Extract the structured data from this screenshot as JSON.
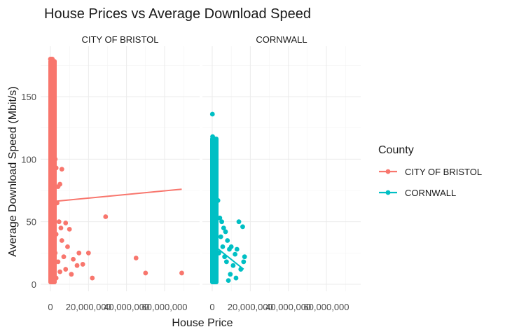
{
  "chart_data": {
    "type": "scatter",
    "title": "House Prices vs Average Download Speed",
    "xlabel": "House Price",
    "ylabel": "Average Download Speed (Mbit/s)",
    "xlim": [
      0,
      70000000
    ],
    "ylim": [
      0,
      180
    ],
    "x_ticks": [
      0,
      20000000,
      40000000,
      60000000
    ],
    "x_tick_labels": [
      "0",
      "20,000,000",
      "40,000,000",
      "60,000,000"
    ],
    "y_ticks": [
      0,
      50,
      100,
      150
    ],
    "y_tick_labels": [
      "0",
      "50",
      "100",
      "150"
    ],
    "grid": true,
    "legend": {
      "title": "County",
      "position": "right"
    },
    "facets": [
      "CITY OF BRISTOL",
      "CORNWALL"
    ],
    "series": [
      {
        "name": "CITY OF BRISTOL",
        "color": "#F8766D",
        "points": [
          [
            0,
            180
          ],
          [
            500000,
            180
          ],
          [
            1000000,
            180
          ],
          [
            300000,
            170
          ],
          [
            200000,
            155
          ],
          [
            400000,
            150
          ],
          [
            800000,
            153
          ],
          [
            100000,
            140
          ],
          [
            600000,
            135
          ],
          [
            900000,
            130
          ],
          [
            300000,
            125
          ],
          [
            700000,
            120
          ],
          [
            1100000,
            118
          ],
          [
            500000,
            110
          ],
          [
            200000,
            105
          ],
          [
            800000,
            100
          ],
          [
            400000,
            95
          ],
          [
            1000000,
            90
          ],
          [
            600000,
            85
          ],
          [
            300000,
            80
          ],
          [
            900000,
            75
          ],
          [
            150000,
            70
          ],
          [
            700000,
            65
          ],
          [
            1200000,
            62
          ],
          [
            400000,
            58
          ],
          [
            800000,
            52
          ],
          [
            200000,
            48
          ],
          [
            1000000,
            45
          ],
          [
            500000,
            40
          ],
          [
            300000,
            35
          ],
          [
            900000,
            30
          ],
          [
            600000,
            25
          ],
          [
            200000,
            20
          ],
          [
            1100000,
            15
          ],
          [
            400000,
            10
          ],
          [
            700000,
            5
          ],
          [
            300000,
            2
          ],
          [
            2000000,
            120
          ],
          [
            2500000,
            100
          ],
          [
            3000000,
            93
          ],
          [
            4000000,
            78
          ],
          [
            6000000,
            92
          ],
          [
            5000000,
            80
          ],
          [
            3500000,
            65
          ],
          [
            2000000,
            60
          ],
          [
            4500000,
            50
          ],
          [
            8000000,
            49
          ],
          [
            10000000,
            44
          ],
          [
            5500000,
            45
          ],
          [
            3000000,
            40
          ],
          [
            6000000,
            35
          ],
          [
            9000000,
            30
          ],
          [
            2500000,
            25
          ],
          [
            7000000,
            22
          ],
          [
            12000000,
            20
          ],
          [
            4000000,
            18
          ],
          [
            15000000,
            25
          ],
          [
            20000000,
            25
          ],
          [
            14000000,
            15
          ],
          [
            17000000,
            16
          ],
          [
            22000000,
            5
          ],
          [
            5000000,
            10
          ],
          [
            8000000,
            12
          ],
          [
            11000000,
            8
          ],
          [
            3000000,
            5
          ],
          [
            2000000,
            55
          ],
          [
            1500000,
            70
          ],
          [
            29000000,
            54
          ],
          [
            45000000,
            21
          ],
          [
            50000000,
            9
          ],
          [
            69000000,
            9
          ]
        ],
        "trend": [
          [
            0,
            66
          ],
          [
            69000000,
            76
          ]
        ]
      },
      {
        "name": "CORNWALL",
        "color": "#00BFC4",
        "points": [
          [
            100000,
            136
          ],
          [
            200000,
            118
          ],
          [
            400000,
            115
          ],
          [
            300000,
            112
          ],
          [
            500000,
            105
          ],
          [
            200000,
            100
          ],
          [
            400000,
            95
          ],
          [
            600000,
            90
          ],
          [
            300000,
            85
          ],
          [
            500000,
            80
          ],
          [
            200000,
            75
          ],
          [
            700000,
            70
          ],
          [
            400000,
            65
          ],
          [
            600000,
            60
          ],
          [
            300000,
            55
          ],
          [
            800000,
            50
          ],
          [
            500000,
            45
          ],
          [
            200000,
            40
          ],
          [
            700000,
            35
          ],
          [
            400000,
            30
          ],
          [
            900000,
            25
          ],
          [
            600000,
            20
          ],
          [
            300000,
            15
          ],
          [
            800000,
            10
          ],
          [
            500000,
            5
          ],
          [
            200000,
            2
          ],
          [
            1000000,
            28
          ],
          [
            1200000,
            38
          ],
          [
            2000000,
            68
          ],
          [
            3000000,
            67
          ],
          [
            4000000,
            53
          ],
          [
            5000000,
            50
          ],
          [
            6000000,
            45
          ],
          [
            4500000,
            38
          ],
          [
            7000000,
            42
          ],
          [
            5500000,
            30
          ],
          [
            8000000,
            35
          ],
          [
            3500000,
            25
          ],
          [
            9000000,
            28
          ],
          [
            6500000,
            22
          ],
          [
            10000000,
            30
          ],
          [
            7500000,
            18
          ],
          [
            12000000,
            24
          ],
          [
            11000000,
            15
          ],
          [
            14000000,
            50
          ],
          [
            16000000,
            46
          ],
          [
            13000000,
            28
          ],
          [
            17000000,
            22
          ],
          [
            16500000,
            18
          ],
          [
            15000000,
            12
          ],
          [
            9500000,
            8
          ],
          [
            12500000,
            5
          ],
          [
            8500000,
            3
          ]
        ],
        "trend": [
          [
            0,
            32
          ],
          [
            16500000,
            12
          ]
        ]
      }
    ]
  }
}
